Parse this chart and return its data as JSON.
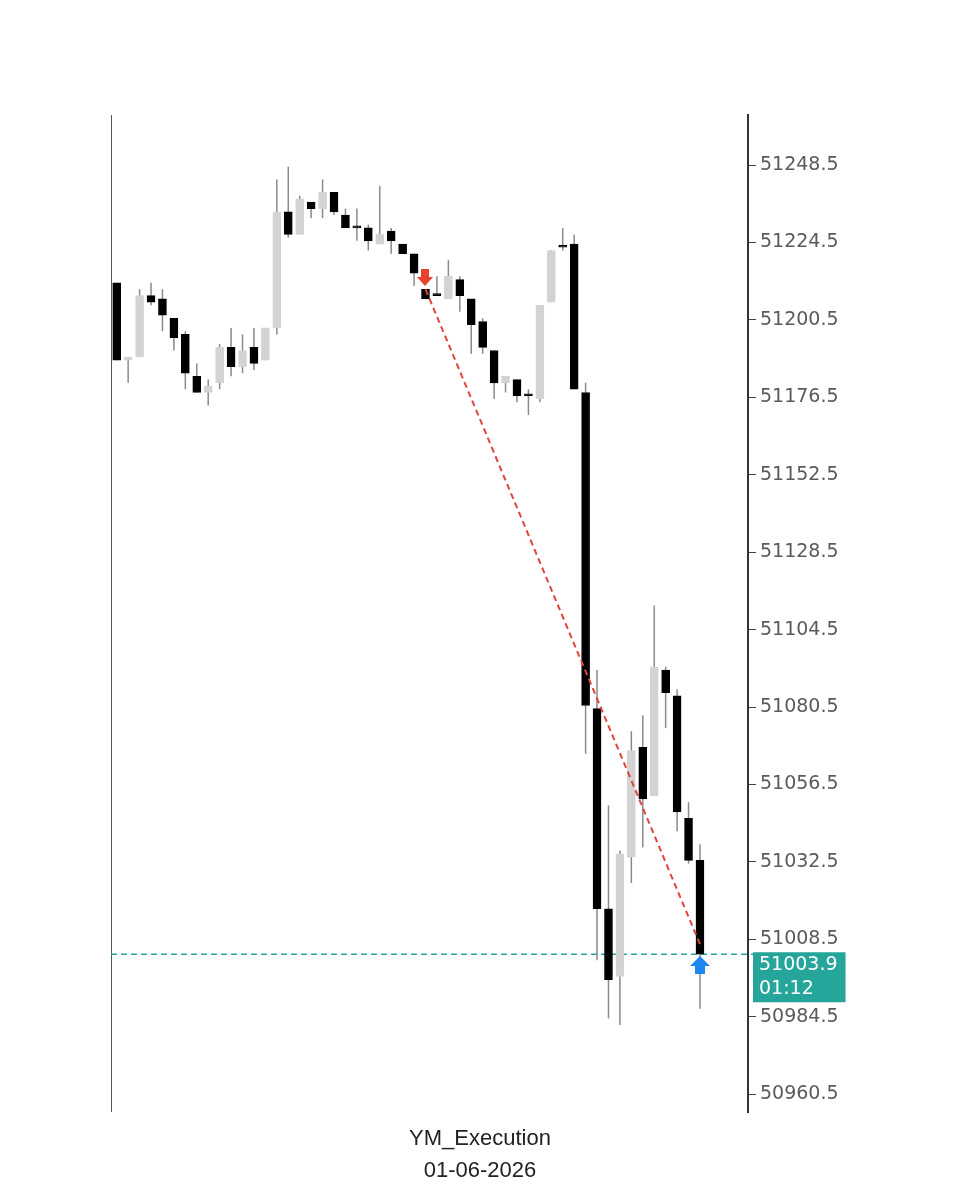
{
  "chart_data": {
    "type": "candlestick",
    "xlabel": "YM_Execution",
    "categories": [
      null,
      null,
      null,
      null,
      null,
      null,
      null,
      null,
      null,
      null,
      null,
      null,
      null,
      null,
      null,
      null,
      null,
      null,
      null,
      null,
      null,
      null,
      null,
      null,
      null,
      null,
      null,
      null,
      null,
      null,
      null,
      null,
      null,
      null,
      null,
      null,
      null,
      null,
      null,
      null,
      null,
      null,
      null,
      null,
      null,
      null,
      null,
      null,
      null,
      null,
      null,
      null
    ],
    "ohlc": [
      [
        51212,
        51212,
        51188,
        51188
      ],
      [
        51188,
        51189,
        51181,
        51189
      ],
      [
        51189,
        51210,
        51189,
        51208
      ],
      [
        51208,
        51212,
        51205,
        51206
      ],
      [
        51207,
        51210,
        51197,
        51202
      ],
      [
        51201,
        51201,
        51191,
        51195
      ],
      [
        51196,
        51197,
        51179,
        51184
      ],
      [
        51183,
        51187,
        51178,
        51178
      ],
      [
        51178,
        51182,
        51174,
        51180
      ],
      [
        51181,
        51193,
        51179,
        51192
      ],
      [
        51192,
        51198,
        51183,
        51186
      ],
      [
        51186,
        51196,
        51184,
        51191
      ],
      [
        51192,
        51198,
        51185,
        51187
      ],
      [
        51188,
        51198,
        51188,
        51198
      ],
      [
        51198,
        51244,
        51196,
        51234
      ],
      [
        51234,
        51248,
        51226,
        51227
      ],
      [
        51227,
        51239,
        51227,
        51238
      ],
      [
        51237,
        51237,
        51232,
        51235
      ],
      [
        51235,
        51244,
        51232,
        51240
      ],
      [
        51240,
        51240,
        51233,
        51234
      ],
      [
        51233,
        51235,
        51229,
        51229
      ],
      [
        51229,
        51235,
        51225,
        51229
      ],
      [
        51229,
        51230,
        51222,
        51225
      ],
      [
        51224,
        51242,
        51224,
        51227
      ],
      [
        51228,
        51229,
        51221,
        51225
      ],
      [
        51224,
        51224,
        51221,
        51221
      ],
      [
        51221,
        51221,
        51211,
        51215
      ],
      [
        51210,
        51210,
        51207,
        51207
      ],
      [
        51208,
        51214,
        51208,
        51208
      ],
      [
        51207,
        51219,
        51207,
        51214
      ],
      [
        51213,
        51214,
        51203,
        51208
      ],
      [
        51207,
        51207,
        51190,
        51199
      ],
      [
        51200,
        51201,
        51190,
        51192
      ],
      [
        51191,
        51191,
        51176,
        51181
      ],
      [
        51181,
        51183,
        51178,
        51183
      ],
      [
        51182,
        51182,
        51175,
        51177
      ],
      [
        51177,
        51179,
        51171,
        51177
      ],
      [
        51176,
        51205,
        51175,
        51205
      ],
      [
        51206,
        51222,
        51206,
        51222
      ],
      [
        51223,
        51229,
        51222,
        51223
      ],
      [
        51224,
        51227,
        51179,
        51179
      ],
      [
        51178,
        51181,
        51066,
        51081
      ],
      [
        51080,
        51092,
        51002,
        51018
      ],
      [
        51018,
        51050,
        50984,
        50996
      ],
      [
        50997,
        51036,
        50982,
        51035
      ],
      [
        51034,
        51073,
        51026,
        51067
      ],
      [
        51068,
        51078,
        51037,
        51052
      ],
      [
        51053,
        51112,
        51053,
        51093
      ],
      [
        51092,
        51093,
        51074,
        51085
      ],
      [
        51084,
        51086,
        51042,
        51048
      ],
      [
        51046,
        51051,
        51032,
        51033
      ],
      [
        51033,
        51038,
        50987,
        51003.9
      ]
    ],
    "colors": [
      "#000000",
      "#d3d3d3",
      "#d3d3d3",
      "#000000",
      "#000000",
      "#000000",
      "#000000",
      "#000000",
      "#d3d3d3",
      "#d3d3d3",
      "#000000",
      "#d3d3d3",
      "#000000",
      "#d3d3d3",
      "#d3d3d3",
      "#000000",
      "#d3d3d3",
      "#000000",
      "#d3d3d3",
      "#000000",
      "#000000",
      "#000000",
      "#000000",
      "#d3d3d3",
      "#000000",
      "#000000",
      "#000000",
      "#000000",
      "#000000",
      "#d3d3d3",
      "#000000",
      "#000000",
      "#000000",
      "#000000",
      "#d3d3d3",
      "#000000",
      "#000000",
      "#d3d3d3",
      "#d3d3d3",
      "#000000",
      "#000000",
      "#000000",
      "#000000",
      "#000000",
      "#d3d3d3",
      "#d3d3d3",
      "#000000",
      "#d3d3d3",
      "#000000",
      "#000000",
      "#000000",
      "#000000"
    ],
    "series": [
      {
        "type": "line",
        "color": "#e0443a",
        "line_style": "dashed",
        "marker": "none",
        "values": [
          null,
          null,
          null,
          null,
          null,
          null,
          null,
          null,
          null,
          null,
          null,
          null,
          null,
          null,
          null,
          null,
          null,
          null,
          null,
          null,
          null,
          null,
          null,
          null,
          null,
          null,
          null,
          51210,
          null,
          null,
          null,
          null,
          null,
          null,
          null,
          null,
          null,
          null,
          null,
          null,
          null,
          null,
          null,
          null,
          null,
          null,
          null,
          null,
          null,
          null,
          null,
          51007
        ]
      }
    ],
    "ylim": [
      50955,
      51264
    ],
    "yticks": [
      50960.5,
      50984.5,
      51008.5,
      51032.5,
      51056.5,
      51080.5,
      51104.5,
      51128.5,
      51152.5,
      51176.5,
      51200.5,
      51224.5,
      51248.5
    ],
    "ref_lines": [
      {
        "axis": "y",
        "value": 51003.9,
        "label": "51003.9\n01:12",
        "color": "#26a69a",
        "line_style": "dashed"
      }
    ],
    "annotations": [
      "01-06-2026"
    ]
  }
}
